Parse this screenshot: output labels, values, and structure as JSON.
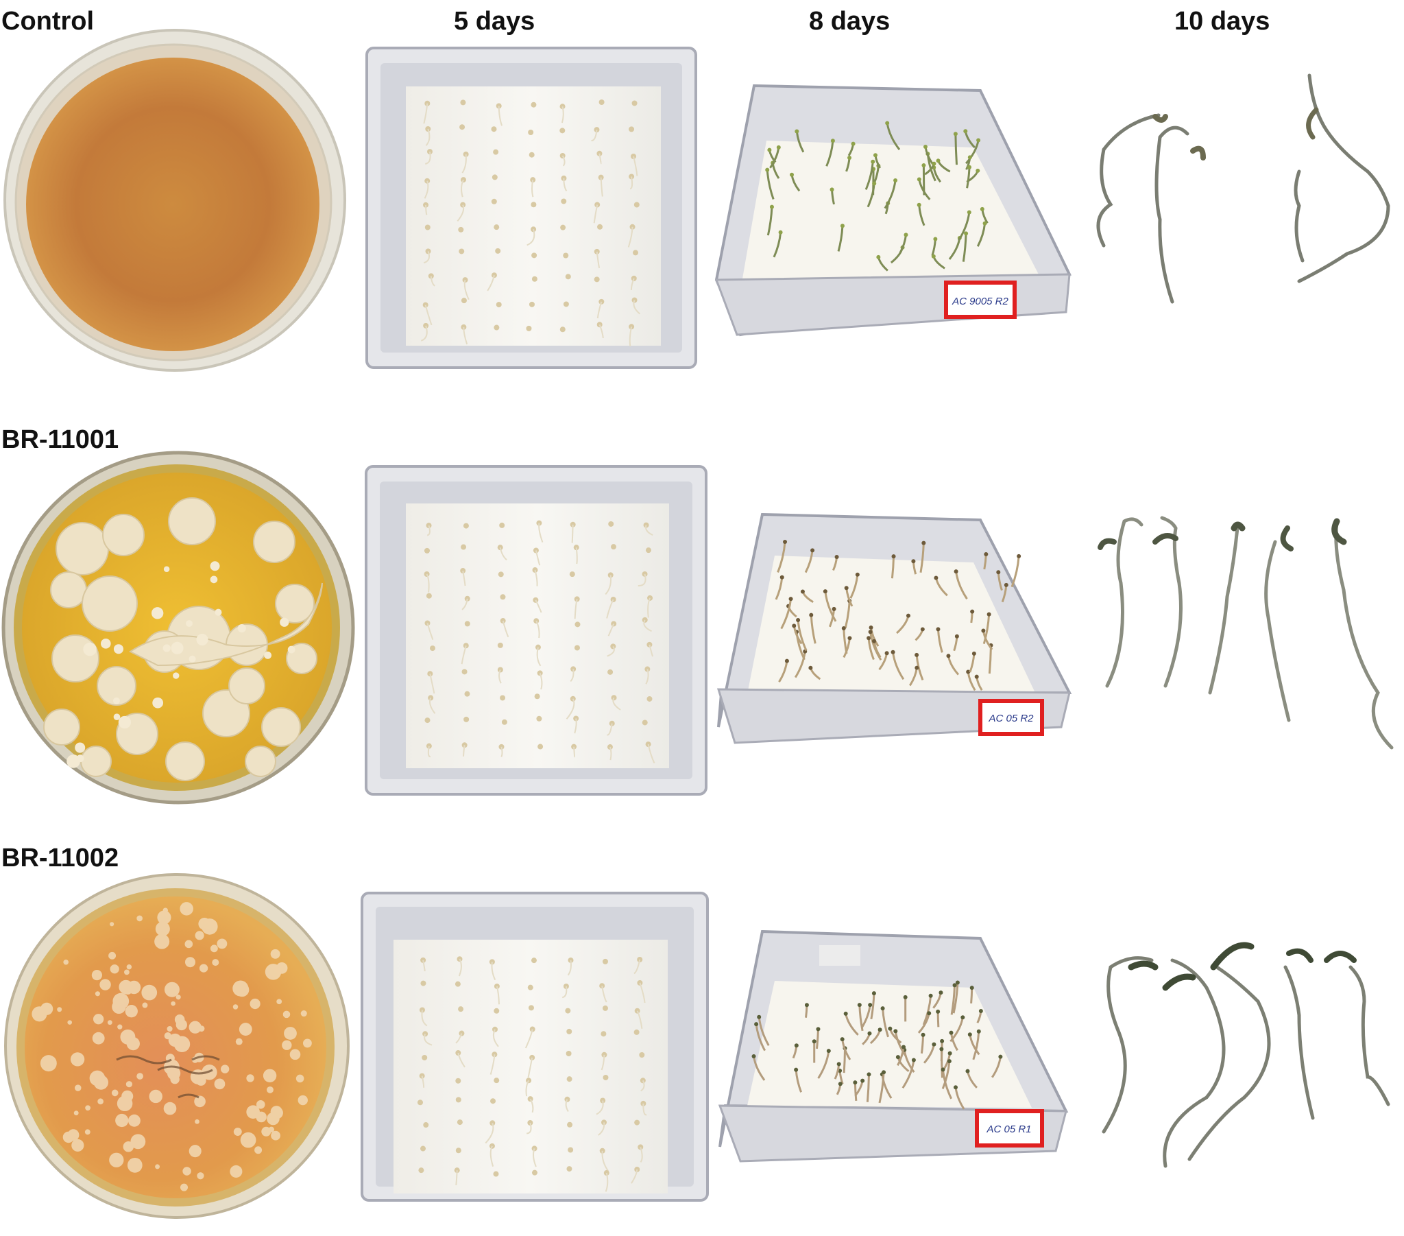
{
  "column_headers": [
    "5 days",
    "8 days",
    "10 days"
  ],
  "rows": [
    {
      "label": "Control"
    },
    {
      "label": "BR-11001"
    },
    {
      "label": "BR-11002"
    }
  ],
  "tray_tags": [
    "AC 9005 R2",
    "AC 05 R2",
    "AC 05 R1"
  ],
  "colors": {
    "control_agar": "#d38f3d",
    "control_agar_dark": "#b86d2f",
    "br11001_agar": "#e8b42a",
    "br11002_agar": "#df9a4c",
    "colony": "#efe2c8",
    "tray_rim": "#b9bcc6",
    "tray_paper": "#f6f4ef",
    "tag_red": "#e02020",
    "seedling": "#7a7d72"
  }
}
